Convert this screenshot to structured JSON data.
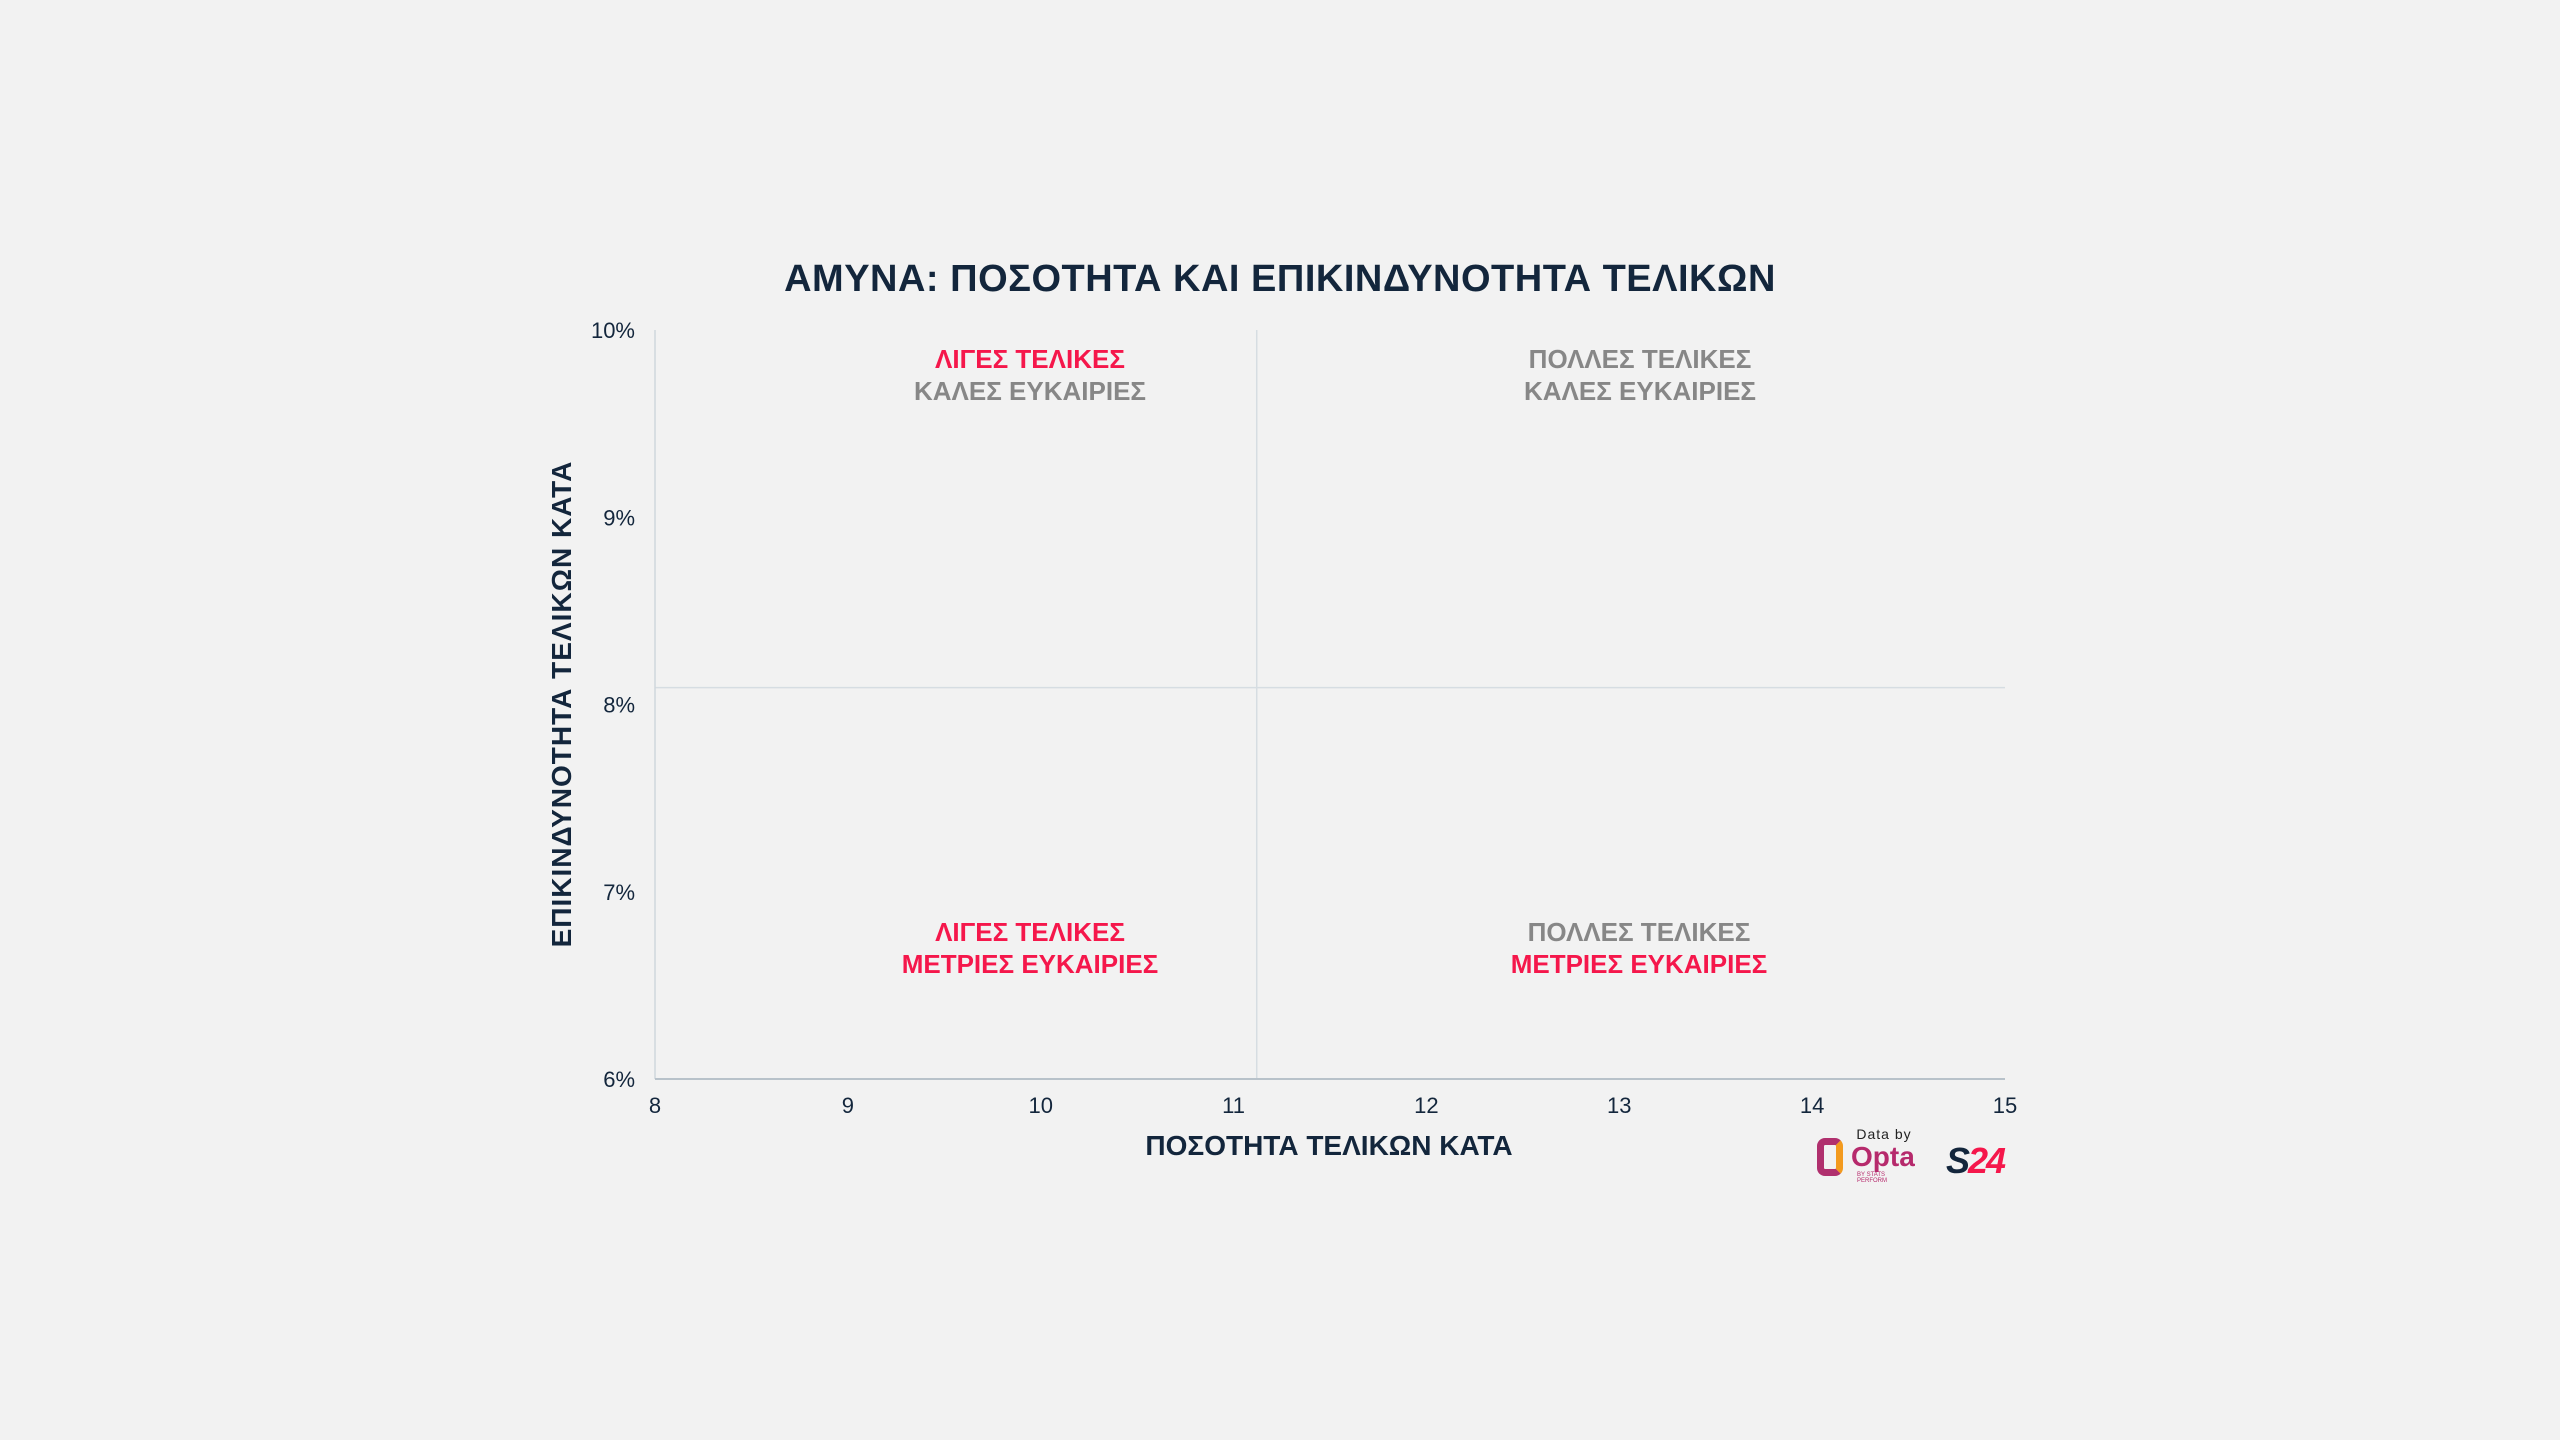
{
  "chart_data": {
    "type": "scatter",
    "title_lead": "ΑΜΥΝΑ:",
    "title_rest": "ΠΟΣΟΤΗΤΑ ΚΑΙ ΕΠΙΚΙΝΔΥΝΟΤΗΤΑ ΤΕΛΙΚΩΝ",
    "xlabel": "ΠΟΣΟΤΗΤΑ ΤΕΛΙΚΩΝ ΚΑΤΑ",
    "ylabel": "ΕΠΙΚΙΝΔΥΝΟΤΗΤΑ ΤΕΛΙΚΩΝ ΚΑΤΑ",
    "xlim": [
      8,
      15
    ],
    "ylim": [
      6,
      10
    ],
    "xticks": [
      "8",
      "9",
      "10",
      "11",
      "12",
      "13",
      "14",
      "15"
    ],
    "yticks": [
      "6%",
      "7%",
      "8%",
      "9%",
      "10%"
    ],
    "x_threshold": 11.12,
    "y_threshold": 8.09,
    "points": [],
    "quadrants": {
      "top_left": {
        "line1": "ΛΙΓΕΣ ΤΕΛΙΚΕΣ",
        "line2": "ΚΑΛΕΣ ΕΥΚΑΙΡΙΕΣ"
      },
      "top_right": {
        "line1": "ΠΟΛΛΕΣ ΤΕΛΙΚΕΣ",
        "line2": "ΚΑΛΕΣ ΕΥΚΑΙΡΙΕΣ"
      },
      "bottom_left": {
        "line1": "ΛΙΓΕΣ ΤΕΛΙΚΕΣ",
        "line2": "ΜΕΤΡΙΕΣ ΕΥΚΑΙΡΙΕΣ"
      },
      "bottom_right": {
        "line1": "ΠΟΛΛΕΣ ΤΕΛΙΚΕΣ",
        "line2": "ΜΕΤΡΙΕΣ ΕΥΚΑΙΡΙΕΣ"
      }
    },
    "grid": false,
    "colors": {
      "accent": "#f5174b",
      "muted": "#878787",
      "text": "#13263c"
    }
  },
  "footer": {
    "data_by": "Data by",
    "opta": "Opta",
    "opta_sub": "BY STATS PERFORM",
    "s24_s": "S",
    "s24_n": "24"
  }
}
